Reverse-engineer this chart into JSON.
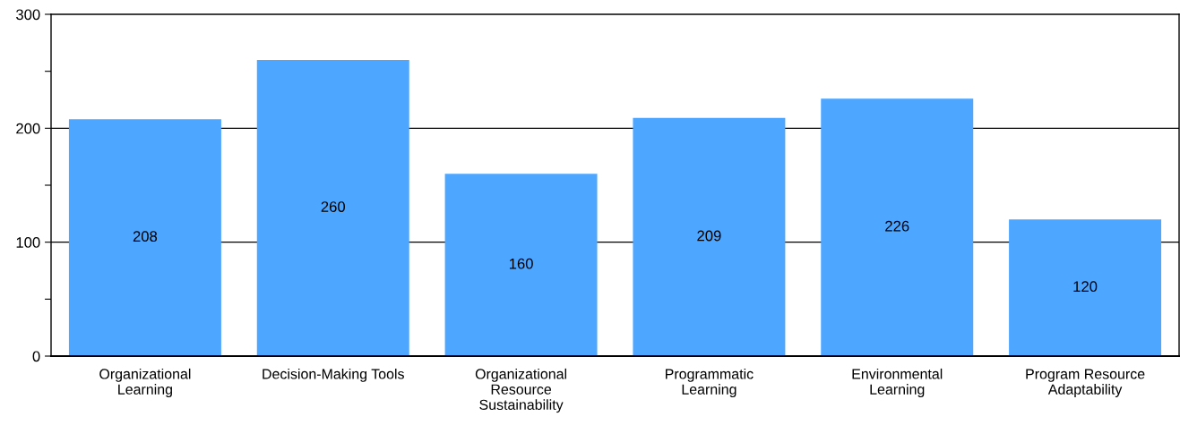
{
  "chart_data": {
    "type": "bar",
    "categories": [
      "Organizational\nLearning",
      "Decision-Making Tools",
      "Organizational\nResource\nSustainability",
      "Programmatic\nLearning",
      "Environmental\nLearning",
      "Program Resource\nAdaptability"
    ],
    "values": [
      208,
      260,
      160,
      209,
      226,
      120
    ],
    "color": "#4da6ff",
    "ylim": [
      0,
      300
    ],
    "yticks": [
      0,
      {
        "value": 50,
        "label": null
      },
      100,
      {
        "value": 150,
        "label": null
      },
      200,
      {
        "value": 250,
        "label": null
      },
      300
    ],
    "grid": "y",
    "data_labels": true
  }
}
